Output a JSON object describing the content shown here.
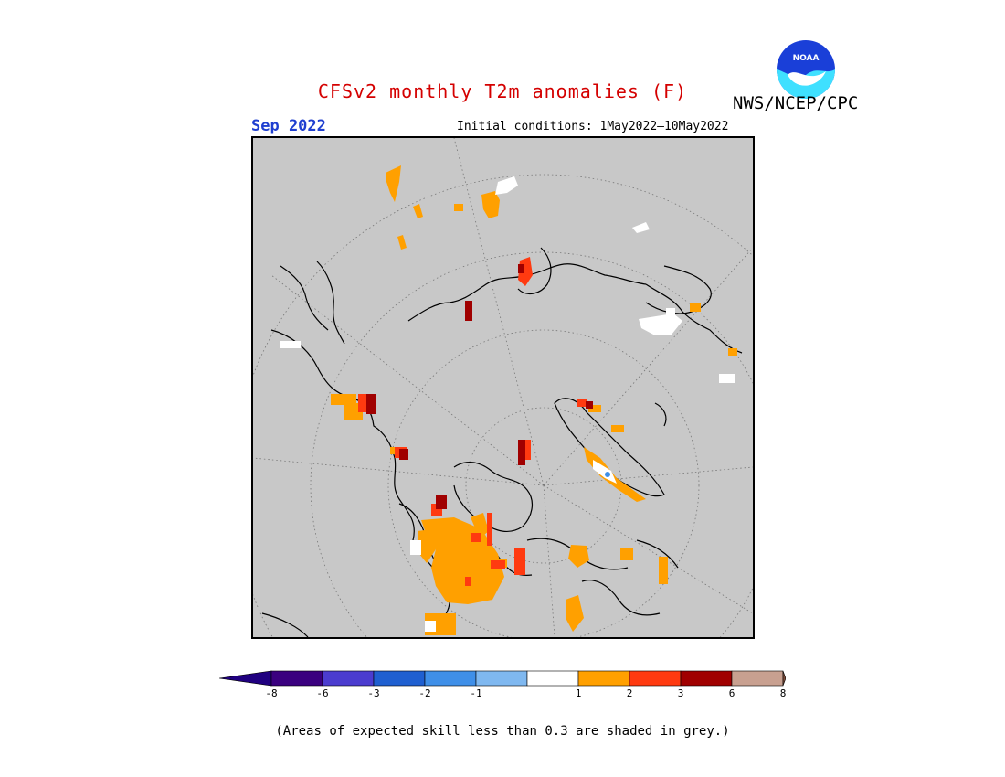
{
  "header": {
    "title": "CFSv2 monthly T2m anomalies (F)",
    "org": "NWS/NCEP/CPC",
    "month": "Sep 2022",
    "initial_conditions": "Initial conditions: 1May2022—10May2022",
    "logo_text": "NOAA"
  },
  "colors": {
    "title": "#d40000",
    "month": "#1f3fd0",
    "ocean_grey": "#c8c8c8",
    "logo_blue": "#1a3fd8",
    "logo_cyan": "#3fe0ff"
  },
  "legend": {
    "bins": [
      {
        "label": "-8",
        "color": "#3a007f"
      },
      {
        "label": "-6",
        "color": "#4b3ccf"
      },
      {
        "label": "-3",
        "color": "#1f5fd0"
      },
      {
        "label": "-2",
        "color": "#3f8fe8"
      },
      {
        "label": "-1",
        "color": "#7fb8f0"
      },
      {
        "label": "1",
        "color": "#ffffff"
      },
      {
        "label": "2",
        "color": "#ffa000"
      },
      {
        "label": "3",
        "color": "#ff3a10"
      },
      {
        "label": "6",
        "color": "#a00000"
      },
      {
        "label": "8",
        "color": "#c8a090"
      }
    ],
    "low_end_color": "#200080",
    "high_end_color": "#7a4a38",
    "tick_labels": [
      "-8",
      "-6",
      "-3",
      "-2",
      "-1",
      "1",
      "2",
      "3",
      "6",
      "8"
    ]
  },
  "footnote": "(Areas of expected skill less than 0.3 are shaded in grey.)"
}
